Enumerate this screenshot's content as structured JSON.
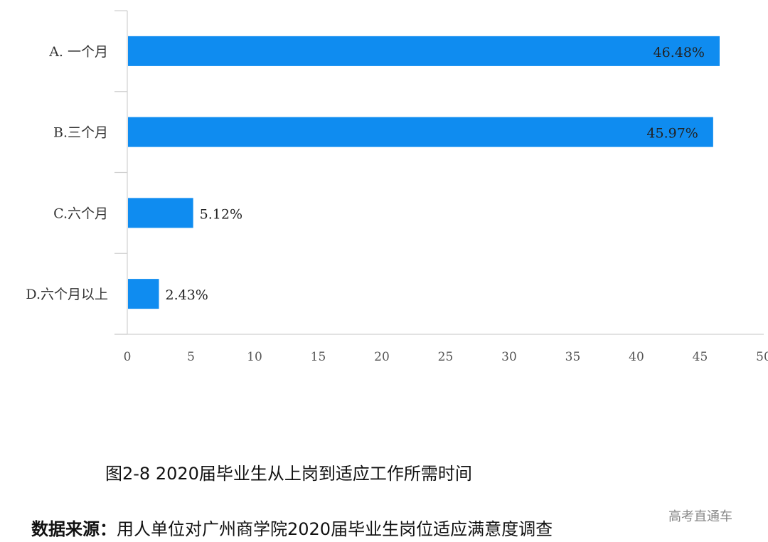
{
  "chart_data": {
    "type": "bar",
    "orientation": "horizontal",
    "categories": [
      "A.  一个月",
      "B.三个月",
      "C.六个月",
      "D.六个月以上"
    ],
    "values": [
      46.48,
      45.97,
      5.12,
      2.43
    ],
    "data_labels": [
      "46.48%",
      "45.97%",
      "5.12%",
      "2.43%"
    ],
    "x_ticks": [
      0,
      5,
      10,
      15,
      20,
      25,
      30,
      35,
      40,
      45,
      50
    ],
    "xlim": [
      0,
      50
    ],
    "grid": false,
    "bar_color": "#0f8cf0"
  },
  "caption": "图2-8  2020届毕业生从上岗到适应工作所需时间",
  "source": {
    "label": "数据来源：",
    "text": "用人单位对广州商学院2020届毕业生岗位适应满意度调查"
  },
  "watermark": "高考直通车"
}
